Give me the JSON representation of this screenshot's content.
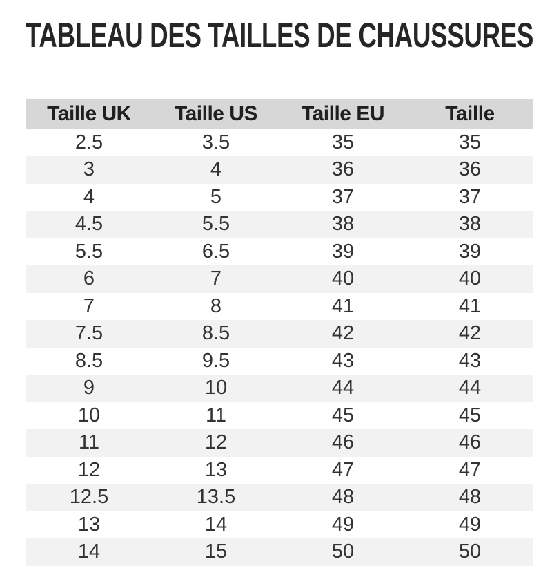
{
  "page": {
    "title": "TABLEAU DES TAILLES DE CHAUSSURES"
  },
  "colors": {
    "header_bg": "#d7d7d7",
    "row_alt_bg": "#f2f2f2",
    "title_text": "#262626",
    "body_text": "#333333"
  },
  "chart_data": {
    "type": "table",
    "title": "TABLEAU DES TAILLES DE CHAUSSURES",
    "columns": [
      "Taille UK",
      "Taille US",
      "Taille EU",
      "Taille"
    ],
    "rows": [
      [
        "2.5",
        "3.5",
        "35",
        "35"
      ],
      [
        "3",
        "4",
        "36",
        "36"
      ],
      [
        "4",
        "5",
        "37",
        "37"
      ],
      [
        "4.5",
        "5.5",
        "38",
        "38"
      ],
      [
        "5.5",
        "6.5",
        "39",
        "39"
      ],
      [
        "6",
        "7",
        "40",
        "40"
      ],
      [
        "7",
        "8",
        "41",
        "41"
      ],
      [
        "7.5",
        "8.5",
        "42",
        "42"
      ],
      [
        "8.5",
        "9.5",
        "43",
        "43"
      ],
      [
        "9",
        "10",
        "44",
        "44"
      ],
      [
        "10",
        "11",
        "45",
        "45"
      ],
      [
        "11",
        "12",
        "46",
        "46"
      ],
      [
        "12",
        "13",
        "47",
        "47"
      ],
      [
        "12.5",
        "13.5",
        "48",
        "48"
      ],
      [
        "13",
        "14",
        "49",
        "49"
      ],
      [
        "14",
        "15",
        "50",
        "50"
      ]
    ],
    "layout": {
      "striped_rows": true,
      "stripe_pattern": "even-rows-gray",
      "column_alignment": "center",
      "grid": false
    }
  }
}
